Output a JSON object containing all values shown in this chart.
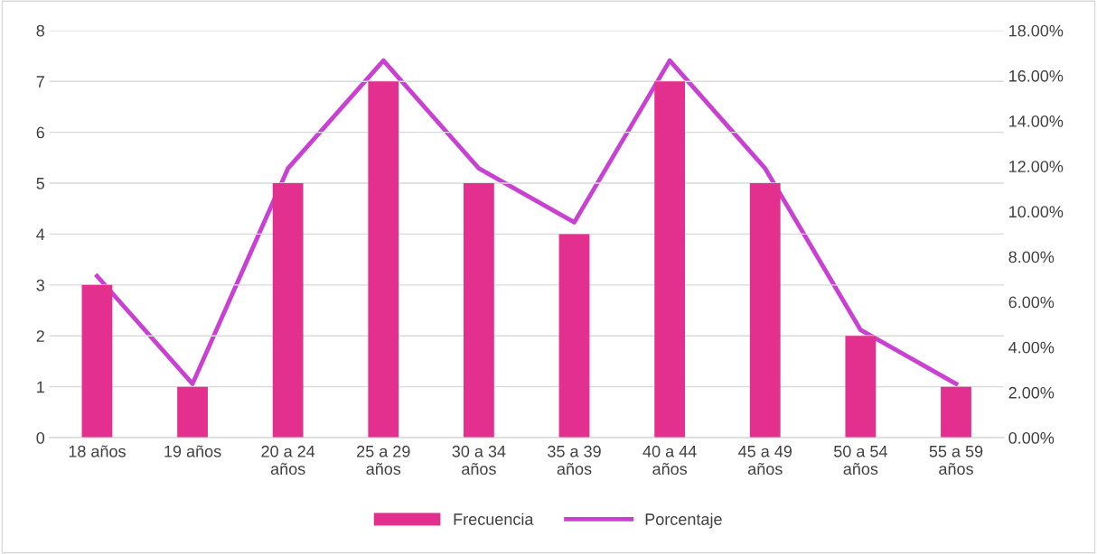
{
  "chart_data": {
    "type": "bar",
    "categories": [
      "18 años",
      "19 años",
      "20 a 24\naños",
      "25 a 29\naños",
      "30 a 34\naños",
      "35 a 39\naños",
      "40 a 44\naños",
      "45 a 49\naños",
      "50 a 54\naños",
      "55 a 59\naños"
    ],
    "series": [
      {
        "name": "Frecuencia",
        "color": "#e32f8e",
        "values": [
          3,
          1,
          5,
          7,
          5,
          4,
          7,
          5,
          2,
          1
        ]
      },
      {
        "name": "Porcentaje",
        "type": "line",
        "axis": "y2",
        "color": "#c940d2",
        "values": [
          7.14,
          2.38,
          11.9,
          16.67,
          11.9,
          9.52,
          16.67,
          11.9,
          4.76,
          2.38
        ]
      }
    ],
    "ylim": [
      0,
      8
    ],
    "yticks": [
      0,
      1,
      2,
      3,
      4,
      5,
      6,
      7,
      8
    ],
    "y2lim": [
      0,
      18
    ],
    "y2ticks": [
      {
        "value": 0,
        "label": "0.00%"
      },
      {
        "value": 2,
        "label": "2.00%"
      },
      {
        "value": 4,
        "label": "4.00%"
      },
      {
        "value": 6,
        "label": "6.00%"
      },
      {
        "value": 8,
        "label": "8.00%"
      },
      {
        "value": 10,
        "label": "10.00%"
      },
      {
        "value": 12,
        "label": "12.00%"
      },
      {
        "value": 14,
        "label": "14.00%"
      },
      {
        "value": 16,
        "label": "16.00%"
      },
      {
        "value": 18,
        "label": "18.00%"
      }
    ],
    "grid": "y",
    "legend": "bottom",
    "marker": "none",
    "line_style": "solid"
  }
}
